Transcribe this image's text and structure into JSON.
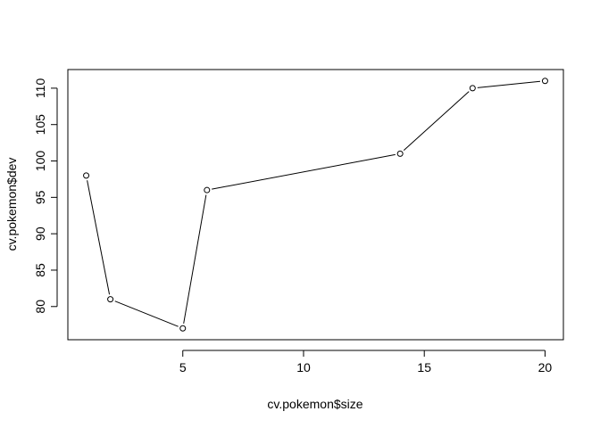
{
  "chart_data": {
    "type": "line",
    "title": "",
    "xlabel": "cv.pokemon$size",
    "ylabel": "cv.pokemon$dev",
    "x": [
      1,
      2,
      5,
      6,
      14,
      17,
      20
    ],
    "y": [
      98,
      81,
      77,
      96,
      101,
      110,
      111
    ],
    "xlim": [
      0.24,
      20.76
    ],
    "ylim": [
      75.44,
      112.56
    ],
    "xticks": [
      5,
      10,
      15,
      20
    ],
    "yticks": [
      80,
      85,
      90,
      95,
      100,
      105,
      110
    ],
    "grid": false,
    "line_color": "#000000",
    "marker": "open-circle"
  }
}
